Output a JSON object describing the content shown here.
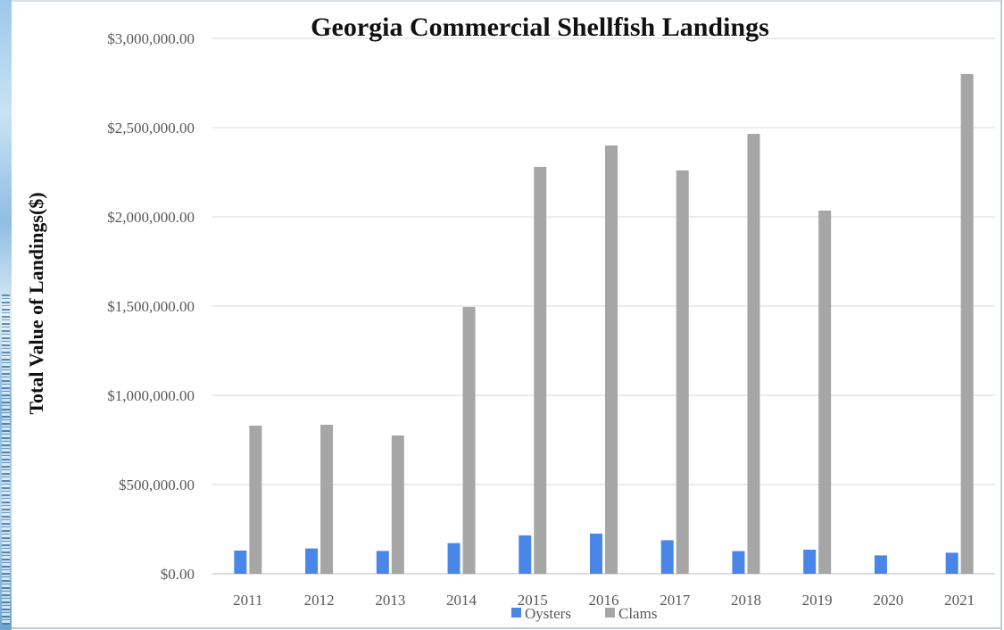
{
  "chart_data": {
    "type": "bar",
    "title": "Georgia Commercial Shellfish Landings",
    "xlabel": "",
    "ylabel": "Total Value of Landings($)",
    "categories": [
      "2011",
      "2012",
      "2013",
      "2014",
      "2015",
      "2016",
      "2017",
      "2018",
      "2019",
      "2020",
      "2021"
    ],
    "series": [
      {
        "name": "Oysters",
        "color": "#4a86e8",
        "values": [
          130000,
          142000,
          128000,
          172000,
          215000,
          225000,
          188000,
          127000,
          135000,
          103000,
          118000
        ]
      },
      {
        "name": "Clams",
        "color": "#a6a6a6",
        "values": [
          830000,
          835000,
          775000,
          1495000,
          2280000,
          2400000,
          2260000,
          2465000,
          2035000,
          null,
          2800000
        ]
      }
    ],
    "ylim": [
      0,
      3000000
    ],
    "yticks": [
      0,
      500000,
      1000000,
      1500000,
      2000000,
      2500000,
      3000000
    ],
    "ytick_labels": [
      "$0.00",
      "$500,000.00",
      "$1,000,000.00",
      "$1,500,000.00",
      "$2,000,000.00",
      "$2,500,000.00",
      "$3,000,000.00"
    ],
    "grid": true,
    "legend": "bottom"
  }
}
